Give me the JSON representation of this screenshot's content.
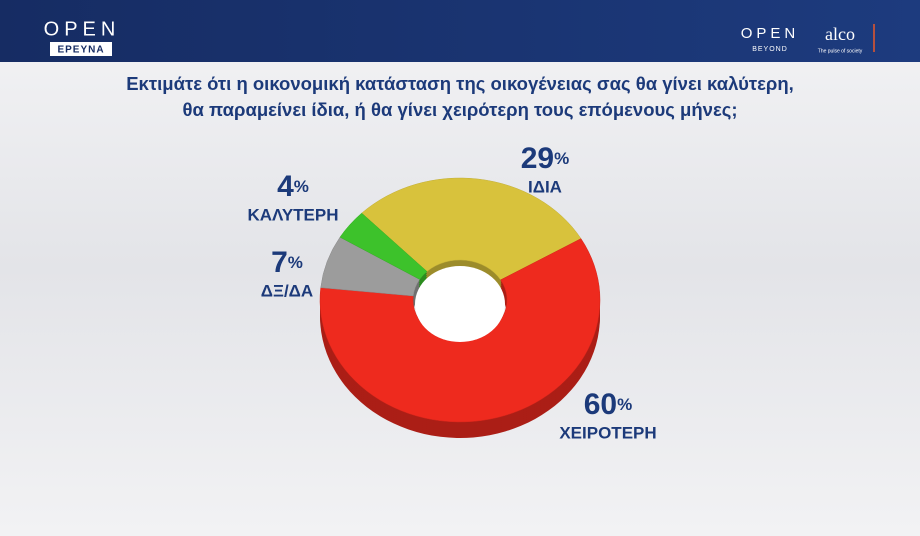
{
  "header": {
    "logo": "OPEN",
    "logo_sub": "ΕΡΕΥΝΑ",
    "partner_logo": "OPEN",
    "partner_sub": "BEYOND",
    "pollster": "alco",
    "pollster_tagline": "The pulse of society"
  },
  "chart_data": {
    "type": "pie",
    "title": [
      "Εκτιμάτε ότι η οικονομική κατάσταση της οικογένειας σας θα γίνει καλύτερη,",
      "θα παραμείνει ίδια, ή θα γίνει χειρότερη τους επόμενους μήνες;"
    ],
    "categories": [
      "ΙΔΙΑ",
      "ΧΕΙΡΟΤΕΡΗ",
      "ΔΞ/ΔΑ",
      "ΚΑΛΥΤΕΡΗ"
    ],
    "values": [
      29,
      60,
      7,
      4
    ],
    "value_labels": [
      "29%",
      "60%",
      "7%",
      "4%"
    ],
    "colors": [
      "#d8c23c",
      "#ee2a1e",
      "#9c9c9c",
      "#3dc22b"
    ]
  }
}
